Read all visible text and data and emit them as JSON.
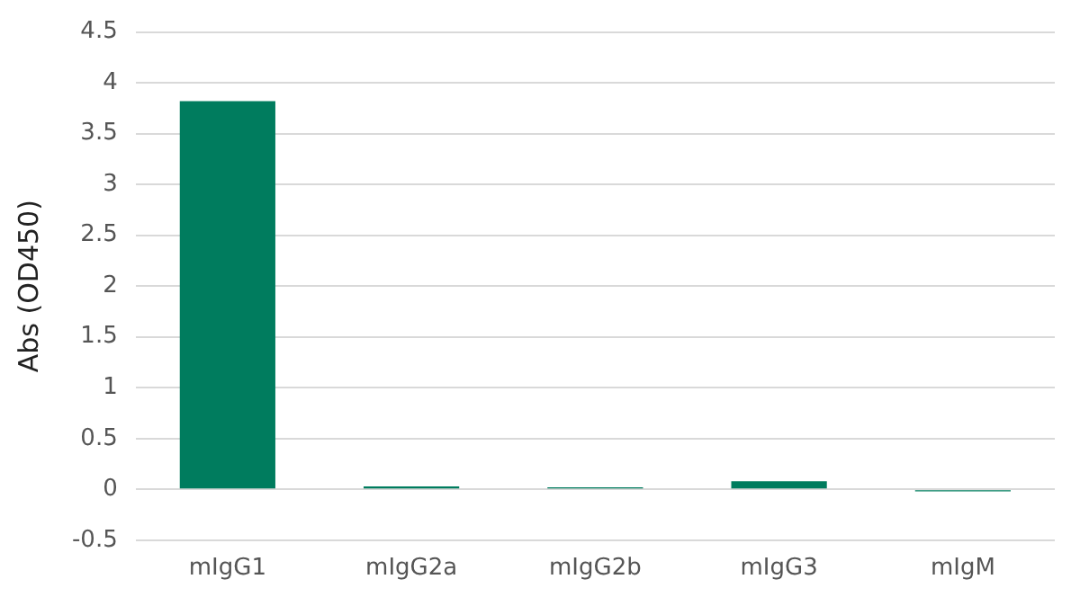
{
  "chart_data": {
    "type": "bar",
    "ylabel": "Abs (OD450)",
    "categories": [
      "mIgG1",
      "mIgG2a",
      "mIgG2b",
      "mIgG3",
      "mIgM"
    ],
    "values": [
      3.82,
      0.03,
      0.02,
      0.08,
      -0.02
    ],
    "color": "#007c5e",
    "ylim": [
      -0.5,
      4.5
    ],
    "yticks": [
      -0.5,
      0,
      0.5,
      1,
      1.5,
      2,
      2.5,
      3,
      3.5,
      4,
      4.5
    ],
    "grid": "y"
  }
}
